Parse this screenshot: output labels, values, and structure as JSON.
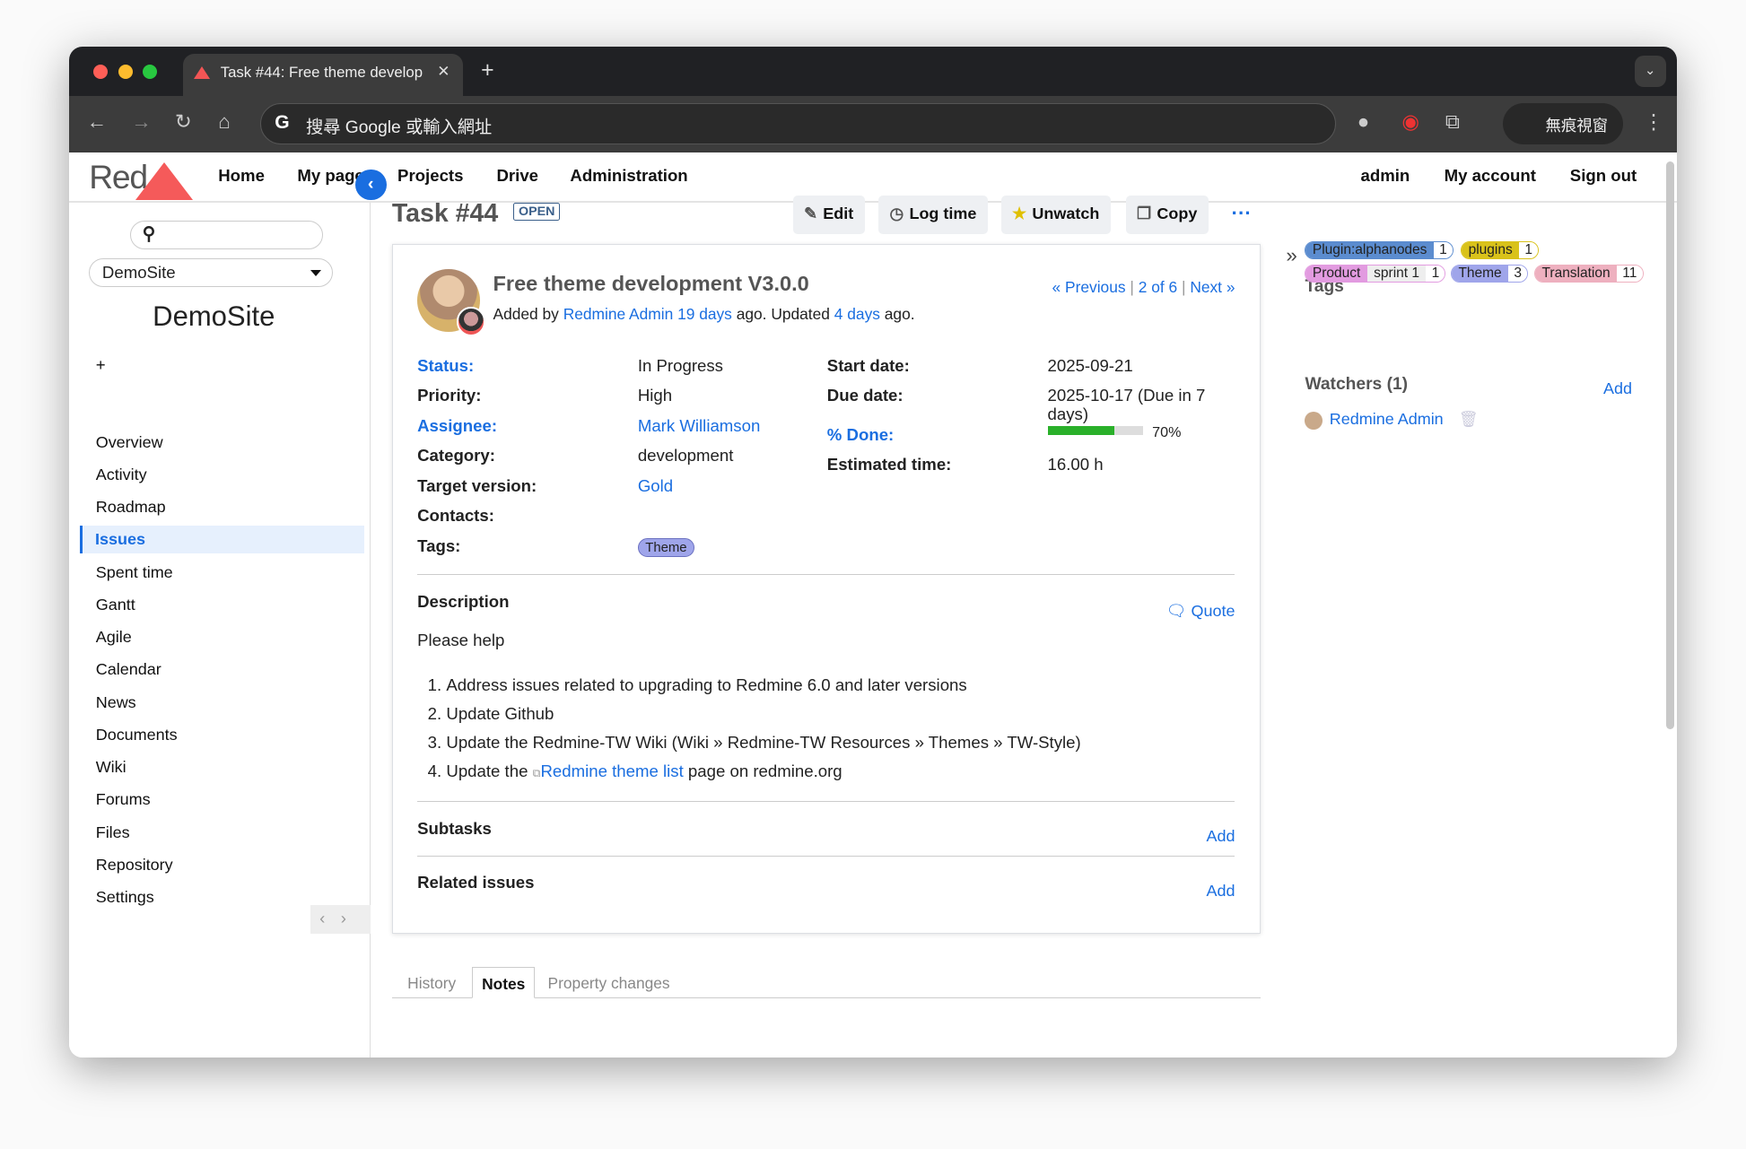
{
  "browser": {
    "tab_title": "Task #44: Free theme develop",
    "omnibox_placeholder": "搜尋 Google 或輸入網址",
    "incognito_label": "無痕視窗"
  },
  "topmenu": {
    "logo_text": "Red",
    "items": [
      "Home",
      "My page",
      "Projects",
      "Drive",
      "Administration"
    ],
    "account": [
      "admin",
      "My account",
      "Sign out"
    ]
  },
  "sidebar": {
    "project_select": "DemoSite",
    "project_title": "DemoSite",
    "new_label": "+",
    "items": [
      "Overview",
      "Activity",
      "Roadmap",
      "Issues",
      "Spent time",
      "Gantt",
      "Agile",
      "Calendar",
      "News",
      "Documents",
      "Wiki",
      "Forums",
      "Files",
      "Repository",
      "Settings"
    ],
    "selected": "Issues",
    "pager": "‹›"
  },
  "issue": {
    "title": "Task #44",
    "status_badge": "OPEN",
    "actions": {
      "edit": "Edit",
      "log_time": "Log time",
      "unwatch": "Unwatch",
      "copy": "Copy",
      "more": "···"
    },
    "subject": "Free theme development V3.0.0",
    "added_by_prefix": "Added by",
    "author": "Redmine Admin",
    "created_ago": "19 days",
    "mid": "ago. Updated",
    "updated_ago": "4 days",
    "suffix": "ago.",
    "nav": {
      "previous": "« Previous",
      "position": "2 of 6",
      "next": "Next »"
    },
    "fields": {
      "status_label": "Status:",
      "status": "In Progress",
      "priority_label": "Priority:",
      "priority": "High",
      "assignee_label": "Assignee:",
      "assignee": "Mark Williamson",
      "category_label": "Category:",
      "category": "development",
      "target_label": "Target version:",
      "target": "Gold",
      "contacts_label": "Contacts:",
      "tags_label": "Tags:",
      "tag": "Theme",
      "start_label": "Start date:",
      "start": "2025-09-21",
      "due_label": "Due date:",
      "due": "2025-10-17 (Due in 7 days)",
      "done_label": "% Done:",
      "done_percent": 70,
      "done_text": "70%",
      "estimated_label": "Estimated time:",
      "estimated": "16.00 h"
    },
    "description": {
      "heading": "Description",
      "quote": "Quote",
      "intro": "Please help",
      "items": [
        "Address issues related to upgrading to Redmine 6.0 and later versions",
        "Update Github",
        "Update the Redmine-TW Wiki (Wiki » Redmine-TW Resources » Themes » TW-Style)"
      ],
      "item4_prefix": "Update the",
      "item4_link": "Redmine theme list",
      "item4_suffix": "page on redmine.org"
    },
    "subtasks": {
      "heading": "Subtasks",
      "add": "Add"
    },
    "related": {
      "heading": "Related issues",
      "add": "Add"
    },
    "history_tabs": [
      "History",
      "Notes",
      "Property changes"
    ],
    "active_history_tab": "Notes"
  },
  "right": {
    "tags_heading": "Tags",
    "tags": [
      {
        "name": "Plugin:alphanodes",
        "count": "1",
        "color": "#5b8ccf"
      },
      {
        "name": "plugins",
        "count": "1",
        "color": "#d9c21a"
      },
      {
        "name": "Product",
        "sub": "sprint 1",
        "count": "1",
        "color": "#e29be0"
      },
      {
        "name": "Theme",
        "count": "3",
        "color": "#9fa5ea"
      },
      {
        "name": "Translation",
        "count": "11",
        "color": "#eeb0bf"
      }
    ],
    "watchers_heading": "Watchers (1)",
    "watchers_add": "Add",
    "watcher": "Redmine Admin"
  }
}
